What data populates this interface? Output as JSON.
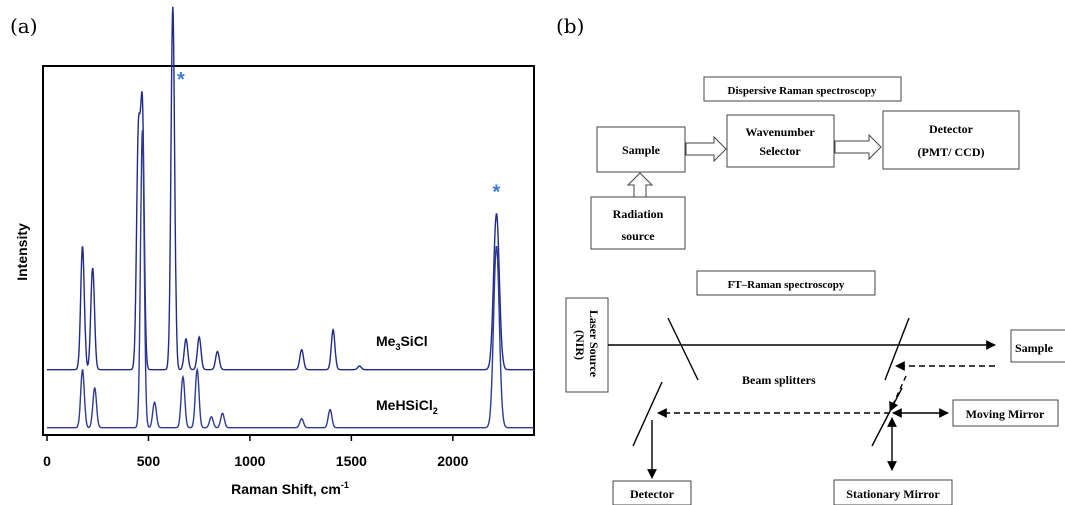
{
  "panels": {
    "a": "(a)",
    "b": "(b)"
  },
  "chart_data": {
    "type": "line",
    "xlabel": "Raman Shift, cm",
    "xlabel_sup": "-1",
    "ylabel": "Intensity",
    "xlim": [
      0,
      2400
    ],
    "x_ticks": [
      0,
      500,
      1000,
      1500,
      2000
    ],
    "y_ticks_shown": false,
    "series": [
      {
        "label_main": "Me",
        "label_sub": "3",
        "label_rest": "SiCl",
        "color": "#1f2a8a",
        "baseline": 0.18,
        "peaks": [
          [
            175,
            0.34
          ],
          [
            225,
            0.28
          ],
          [
            450,
            0.62
          ],
          [
            470,
            0.7
          ],
          [
            620,
            1.0
          ],
          [
            685,
            0.085
          ],
          [
            750,
            0.09
          ],
          [
            840,
            0.05
          ],
          [
            1255,
            0.055
          ],
          [
            1410,
            0.11
          ],
          [
            1540,
            0.01
          ],
          [
            2215,
            0.43
          ]
        ]
      },
      {
        "label_main": "MeHSiCl",
        "label_sub": "2",
        "label_rest": "",
        "color": "#2e3a96",
        "baseline": 0.02,
        "peaks": [
          [
            175,
            0.16
          ],
          [
            235,
            0.11
          ],
          [
            470,
            0.82
          ],
          [
            530,
            0.07
          ],
          [
            670,
            0.14
          ],
          [
            740,
            0.16
          ],
          [
            810,
            0.03
          ],
          [
            865,
            0.04
          ],
          [
            1255,
            0.025
          ],
          [
            1395,
            0.05
          ],
          [
            2215,
            0.5
          ]
        ]
      }
    ],
    "annotations": [
      {
        "text": "*",
        "x": 660,
        "y": 1.0,
        "color": "#3a7bd5"
      },
      {
        "text": "*",
        "x": 2215,
        "y": 0.69,
        "color": "#3a7bd5"
      }
    ]
  },
  "diagram": {
    "dispersive_title": "Dispersive Raman  spectroscopy",
    "sample": "Sample",
    "wavenumber_line1": "Wavenumber",
    "wavenumber_line2": "Selector",
    "detector_line1": "Detector",
    "detector_line2": "(PMT/ CCD)",
    "radiation_line1": "Radiation",
    "radiation_line2": "source",
    "ft_title": "FT–Raman spectroscopy",
    "laser_source": "Laser Source",
    "nir": "(NIR)",
    "sample_ft": "Sample",
    "beam_splitters": "Beam splitters",
    "moving_mirror": "Moving Mirror",
    "detector_ft": "Detector",
    "stationary_mirror": "Stationary Mirror"
  }
}
